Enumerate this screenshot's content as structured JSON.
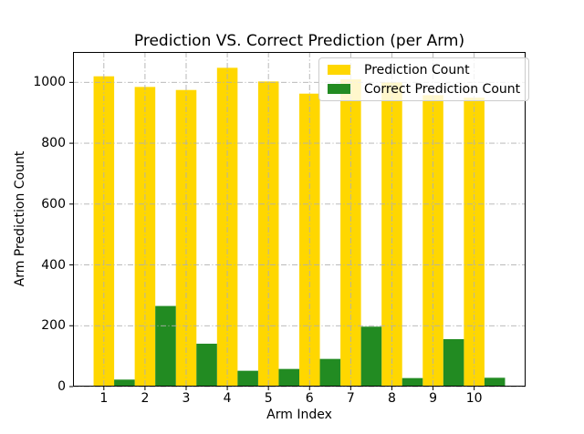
{
  "figure": {
    "background": "#ffffff"
  },
  "chart_data": {
    "type": "bar",
    "title": "Prediction VS. Correct Prediction (per Arm)",
    "xlabel": "Arm Index",
    "ylabel": "Arm Prediction Count",
    "categories": [
      "1",
      "2",
      "3",
      "4",
      "5",
      "6",
      "7",
      "8",
      "9",
      "10"
    ],
    "series": [
      {
        "name": "Prediction Count",
        "color": "#FFD700",
        "values": [
          1020,
          985,
          975,
          1048,
          1003,
          963,
          1010,
          1000,
          958,
          950
        ]
      },
      {
        "name": "Correct Prediction Count",
        "color": "#228B22",
        "values": [
          23,
          265,
          141,
          52,
          58,
          91,
          197,
          28,
          156,
          29
        ]
      }
    ],
    "ylim": [
      0,
      1100
    ],
    "yticks": [
      0,
      200,
      400,
      600,
      800,
      1000
    ],
    "xlim": [
      0.25,
      11.25
    ],
    "bar_width": 0.5,
    "grid": {
      "visible": true,
      "linestyle": "dash-dot",
      "color": "#b0b0b0",
      "above_bars": true
    },
    "legend": {
      "position": "upper-right"
    },
    "axis_color": "#000000",
    "text_color": "#000000"
  }
}
